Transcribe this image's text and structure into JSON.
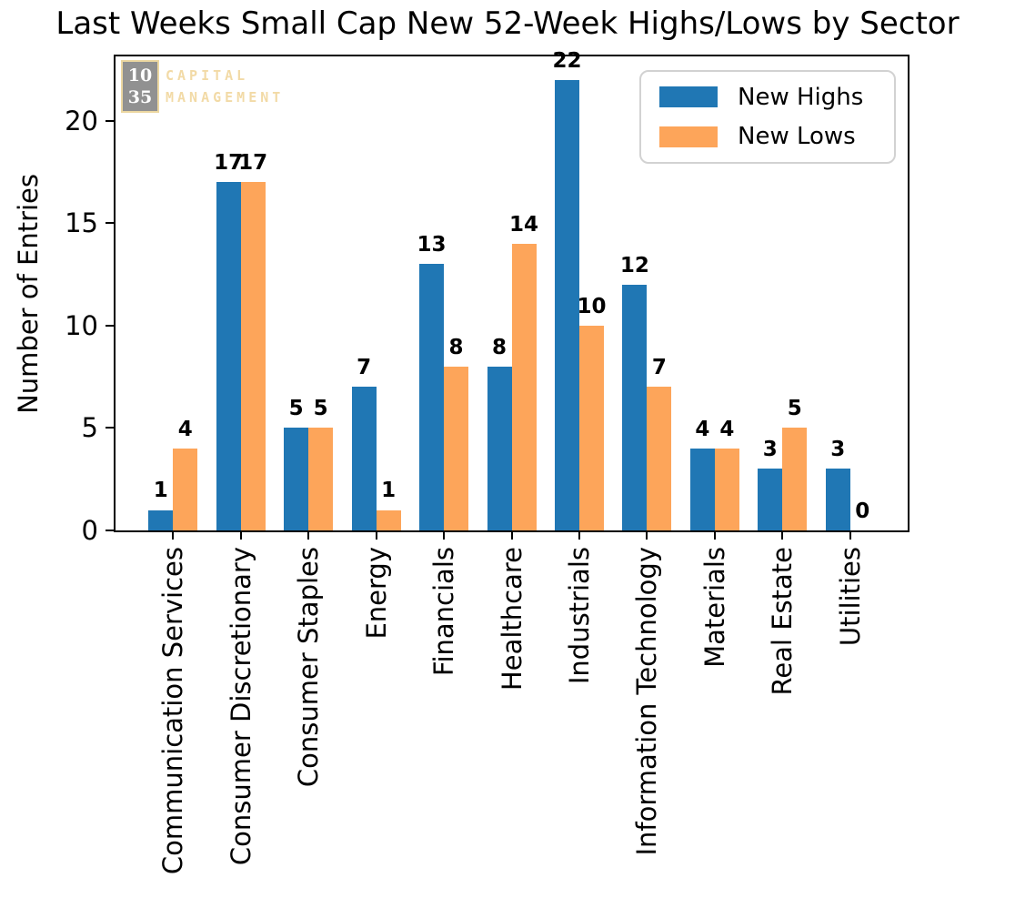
{
  "chart_data": {
    "type": "bar",
    "title": "Last Weeks Small Cap New 52-Week Highs/Lows by Sector",
    "xlabel": "",
    "ylabel": "Number of Entries",
    "categories": [
      "Communication Services",
      "Consumer Discretionary",
      "Consumer Staples",
      "Energy",
      "Financials",
      "Healthcare",
      "Industrials",
      "Information Technology",
      "Materials",
      "Real Estate",
      "Utilities"
    ],
    "series": [
      {
        "name": "New Highs",
        "color": "#2077b4",
        "values": [
          1,
          17,
          5,
          7,
          13,
          8,
          22,
          12,
          4,
          3,
          3
        ]
      },
      {
        "name": "New Lows",
        "color": "#fda55a",
        "values": [
          4,
          17,
          5,
          1,
          8,
          14,
          10,
          7,
          4,
          5,
          0
        ]
      }
    ],
    "yticks": [
      0,
      5,
      10,
      15,
      20
    ],
    "ylim": [
      0,
      23.15
    ],
    "grid": false,
    "legend_position": "upper right",
    "bar_value_labels": true
  },
  "watermark": {
    "box_line1": "10",
    "box_line2": "35",
    "text_line1": "CAPITAL",
    "text_line2": "MANAGEMENT",
    "box_color": "#8c8c8c",
    "accent_color": "#f2d9a2"
  }
}
